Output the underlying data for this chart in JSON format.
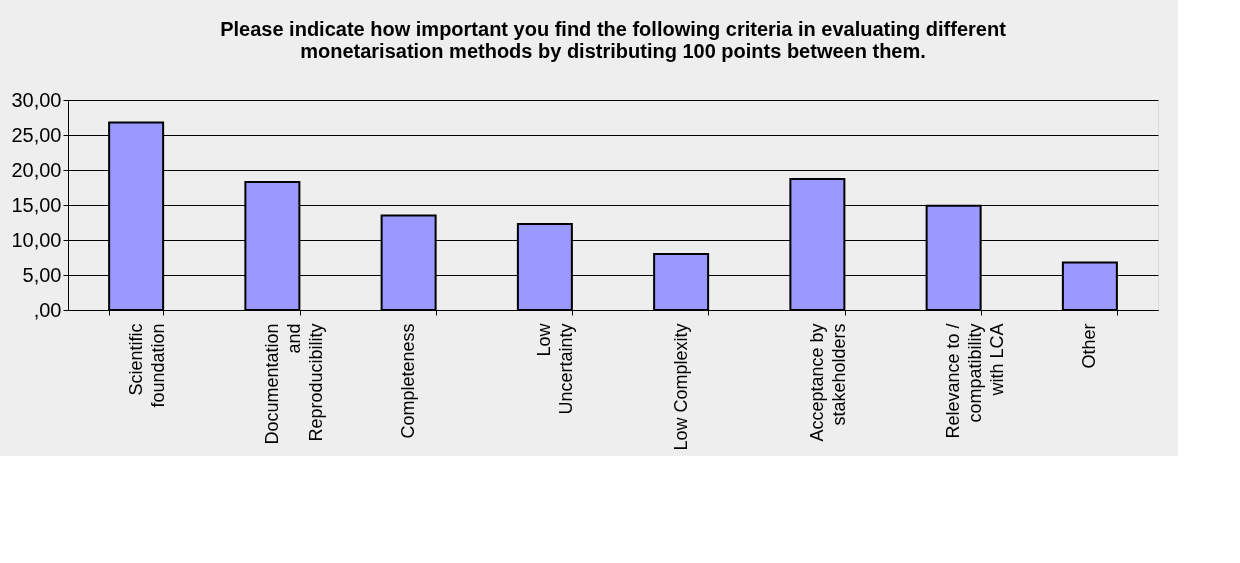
{
  "chart_data": {
    "type": "bar",
    "title": [
      "Please indicate how important you find the following criteria in evaluating different",
      "monetarisation methods by distributing 100 points between them."
    ],
    "categories": [
      "Scientific foundation",
      "Documentation and Reproducibility",
      "Completeness",
      "Low Uncertainty",
      "Low Complexity",
      "Acceptance by stakeholders",
      "Relevance to / compatibility with LCA",
      "Other"
    ],
    "values": [
      26.8,
      18.3,
      13.5,
      12.3,
      8.0,
      18.7,
      14.9,
      6.8
    ],
    "color": "#9999ff",
    "ylim": [
      0,
      30
    ],
    "yticks": [
      {
        "value": 0,
        "label": ",00"
      },
      {
        "value": 5,
        "label": "5,00"
      },
      {
        "value": 10,
        "label": "10,00"
      },
      {
        "value": 15,
        "label": "15,00"
      },
      {
        "value": 20,
        "label": "20,00"
      },
      {
        "value": 25,
        "label": "25,00"
      },
      {
        "value": 30,
        "label": "30,00"
      }
    ],
    "grid": "y"
  }
}
